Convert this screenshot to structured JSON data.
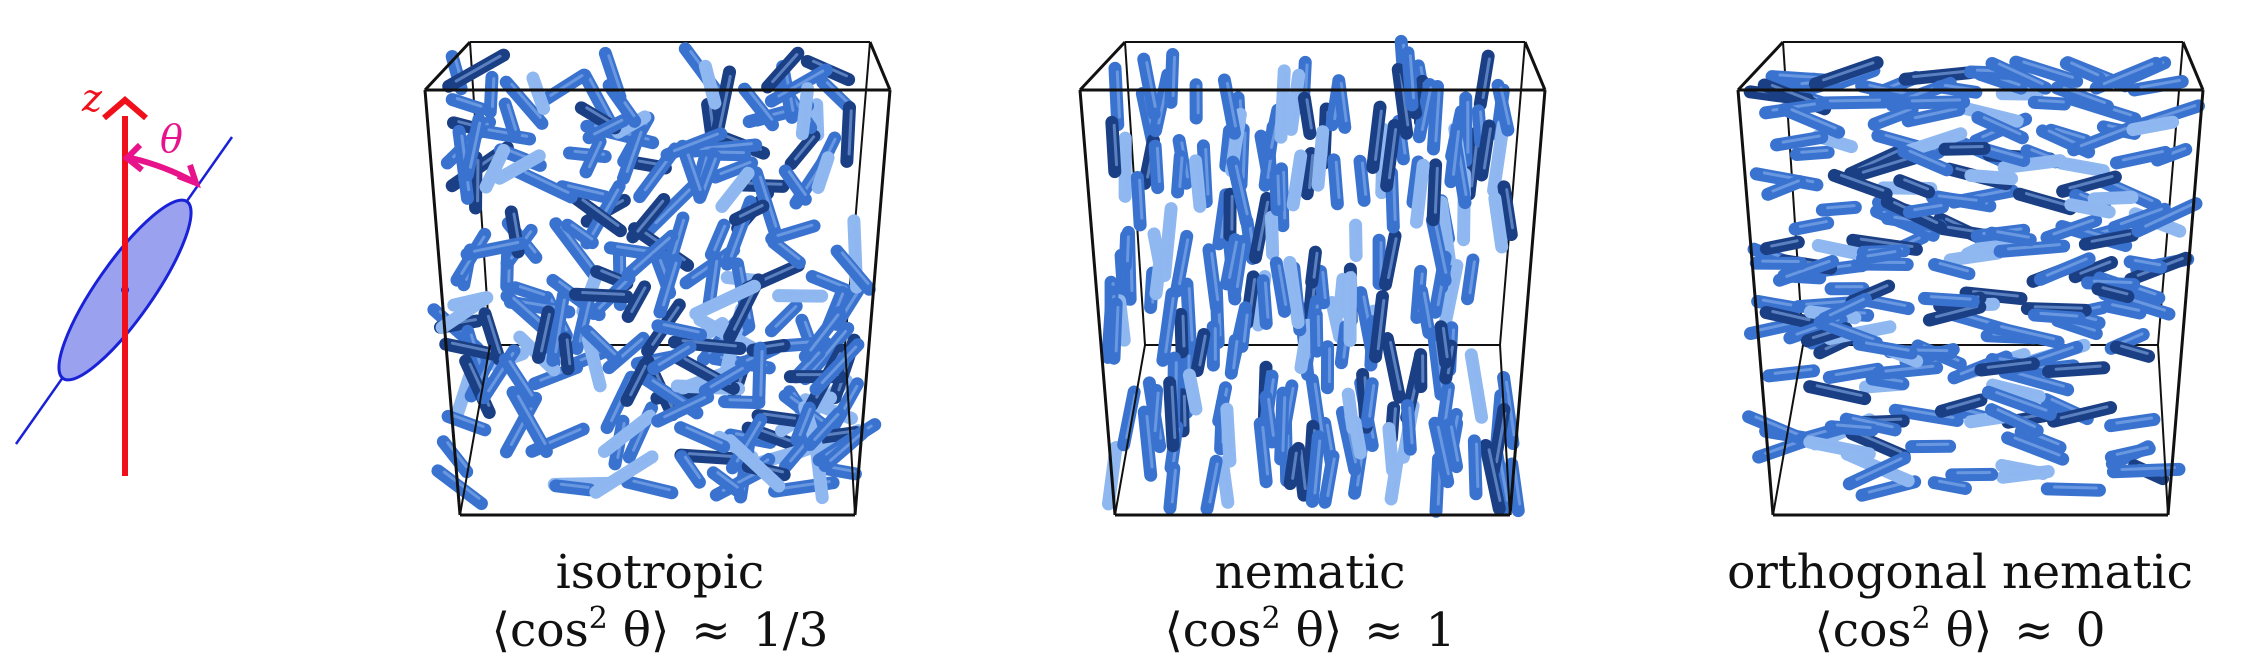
{
  "axis_label": "z",
  "angle_label": "θ",
  "colors": {
    "axis": "#f0101c",
    "angle": "#e8138a",
    "ellipse_fill": "#9aa2f0",
    "ellipse_stroke": "#1a22d8",
    "box_stroke": "#111111",
    "rod_dark": "#1b3f84",
    "rod_mid": "#3a73cf",
    "rod_light": "#8fb7f0"
  },
  "panels": [
    {
      "phase": "isotropic",
      "formula_lhs": "⟨cos",
      "formula_exp": "2",
      "formula_rest": " θ⟩",
      "approx": "≈",
      "value": "1/3",
      "orientation": "isotropic",
      "rod_count": 220
    },
    {
      "phase": "nematic",
      "formula_lhs": "⟨cos",
      "formula_exp": "2",
      "formula_rest": " θ⟩",
      "approx": "≈",
      "value": "1",
      "orientation": "nematic",
      "rod_count": 200
    },
    {
      "phase": "orthogonal nematic",
      "formula_lhs": "⟨cos",
      "formula_exp": "2",
      "formula_rest": " θ⟩",
      "approx": "≈",
      "value": "0",
      "orientation": "orthogonal",
      "rod_count": 210
    }
  ]
}
